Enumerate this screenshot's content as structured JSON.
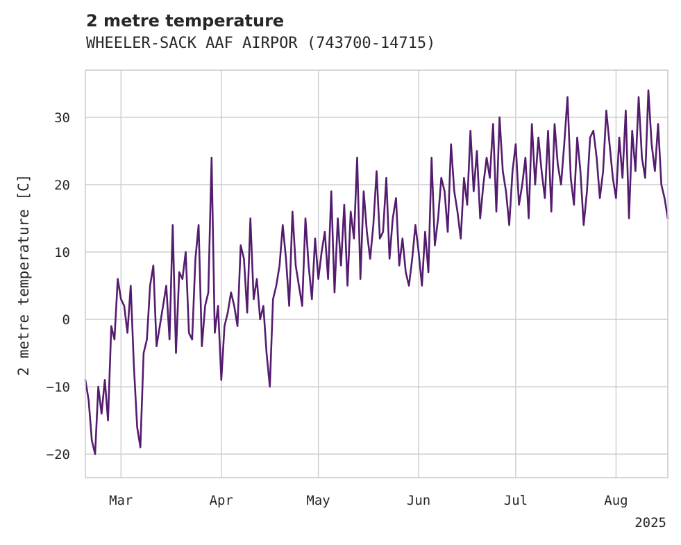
{
  "chart_data": {
    "type": "line",
    "title": "2 metre temperature",
    "subtitle": "WHEELER-SACK AAF AIRPOR (743700-14715)",
    "ylabel": "2 metre temperature [C]",
    "xlabel": "",
    "x_range": [
      "2025-02-18",
      "2025-08-17"
    ],
    "ylim": [
      -23.5,
      37
    ],
    "y_ticks": [
      -20,
      -10,
      0,
      10,
      20,
      30
    ],
    "y_tick_labels": [
      "−20",
      "−10",
      "0",
      "10",
      "20",
      "30"
    ],
    "x_ticks": [
      "2025-03-01",
      "2025-04-01",
      "2025-05-01",
      "2025-06-01",
      "2025-07-01",
      "2025-08-01"
    ],
    "x_tick_labels": [
      "Mar",
      "Apr",
      "May",
      "Jun",
      "Jul",
      "Aug"
    ],
    "x_year_label": "2025",
    "grid": true,
    "series_color": "#541C6E",
    "series": [
      {
        "name": "",
        "x": [
          "2025-02-18",
          "2025-02-19",
          "2025-02-20",
          "2025-02-21",
          "2025-02-22",
          "2025-02-23",
          "2025-02-24",
          "2025-02-25",
          "2025-02-26",
          "2025-02-27",
          "2025-02-28",
          "2025-03-01",
          "2025-03-02",
          "2025-03-03",
          "2025-03-04",
          "2025-03-05",
          "2025-03-06",
          "2025-03-07",
          "2025-03-08",
          "2025-03-09",
          "2025-03-10",
          "2025-03-11",
          "2025-03-12",
          "2025-03-13",
          "2025-03-14",
          "2025-03-15",
          "2025-03-16",
          "2025-03-17",
          "2025-03-18",
          "2025-03-19",
          "2025-03-20",
          "2025-03-21",
          "2025-03-22",
          "2025-03-23",
          "2025-03-24",
          "2025-03-25",
          "2025-03-26",
          "2025-03-27",
          "2025-03-28",
          "2025-03-29",
          "2025-03-30",
          "2025-03-31",
          "2025-04-01",
          "2025-04-02",
          "2025-04-03",
          "2025-04-04",
          "2025-04-05",
          "2025-04-06",
          "2025-04-07",
          "2025-04-08",
          "2025-04-09",
          "2025-04-10",
          "2025-04-11",
          "2025-04-12",
          "2025-04-13",
          "2025-04-14",
          "2025-04-15",
          "2025-04-16",
          "2025-04-17",
          "2025-04-18",
          "2025-04-19",
          "2025-04-20",
          "2025-04-21",
          "2025-04-22",
          "2025-04-23",
          "2025-04-24",
          "2025-04-25",
          "2025-04-26",
          "2025-04-27",
          "2025-04-28",
          "2025-04-29",
          "2025-04-30",
          "2025-05-01",
          "2025-05-02",
          "2025-05-03",
          "2025-05-04",
          "2025-05-05",
          "2025-05-06",
          "2025-05-07",
          "2025-05-08",
          "2025-05-09",
          "2025-05-10",
          "2025-05-11",
          "2025-05-12",
          "2025-05-13",
          "2025-05-14",
          "2025-05-15",
          "2025-05-16",
          "2025-05-17",
          "2025-05-18",
          "2025-05-19",
          "2025-05-20",
          "2025-05-21",
          "2025-05-22",
          "2025-05-23",
          "2025-05-24",
          "2025-05-25",
          "2025-05-26",
          "2025-05-27",
          "2025-05-28",
          "2025-05-29",
          "2025-05-30",
          "2025-05-31",
          "2025-06-01",
          "2025-06-02",
          "2025-06-03",
          "2025-06-04",
          "2025-06-05",
          "2025-06-06",
          "2025-06-07",
          "2025-06-08",
          "2025-06-09",
          "2025-06-10",
          "2025-06-11",
          "2025-06-12",
          "2025-06-13",
          "2025-06-14",
          "2025-06-15",
          "2025-06-16",
          "2025-06-17",
          "2025-06-18",
          "2025-06-19",
          "2025-06-20",
          "2025-06-21",
          "2025-06-22",
          "2025-06-23",
          "2025-06-24",
          "2025-06-25",
          "2025-06-26",
          "2025-06-27",
          "2025-06-28",
          "2025-06-29",
          "2025-06-30",
          "2025-07-01",
          "2025-07-02",
          "2025-07-03",
          "2025-07-04",
          "2025-07-05",
          "2025-07-06",
          "2025-07-07",
          "2025-07-08",
          "2025-07-09",
          "2025-07-10",
          "2025-07-11",
          "2025-07-12",
          "2025-07-13",
          "2025-07-14",
          "2025-07-15",
          "2025-07-16",
          "2025-07-17",
          "2025-07-18",
          "2025-07-19",
          "2025-07-20",
          "2025-07-21",
          "2025-07-22",
          "2025-07-23",
          "2025-07-24",
          "2025-07-25",
          "2025-07-26",
          "2025-07-27",
          "2025-07-28",
          "2025-07-29",
          "2025-07-30",
          "2025-07-31",
          "2025-08-01",
          "2025-08-02",
          "2025-08-03",
          "2025-08-04",
          "2025-08-05",
          "2025-08-06",
          "2025-08-07",
          "2025-08-08",
          "2025-08-09",
          "2025-08-10",
          "2025-08-11",
          "2025-08-12",
          "2025-08-13",
          "2025-08-14",
          "2025-08-15",
          "2025-08-16",
          "2025-08-17"
        ],
        "y": [
          -9,
          -12,
          -18,
          -20,
          -10,
          -14,
          -9,
          -15,
          -1,
          -3,
          6,
          3,
          2,
          -2,
          5,
          -7,
          -16,
          -19,
          -5,
          -3,
          5,
          8,
          -4,
          -1,
          2,
          5,
          -3,
          14,
          -5,
          7,
          6,
          10,
          -2,
          -3,
          9,
          14,
          -4,
          2,
          4,
          24,
          -2,
          2,
          -9,
          -1,
          1,
          4,
          2,
          -1,
          11,
          9,
          1,
          15,
          3,
          6,
          0,
          2,
          -5,
          -10,
          3,
          5,
          8,
          14,
          9,
          2,
          16,
          8,
          5,
          2,
          15,
          8,
          3,
          12,
          6,
          10,
          13,
          6,
          19,
          4,
          15,
          8,
          17,
          5,
          16,
          12,
          24,
          6,
          19,
          13,
          9,
          14,
          22,
          12,
          13,
          21,
          9,
          15,
          18,
          8,
          12,
          7,
          5,
          9,
          14,
          10,
          5,
          13,
          7,
          24,
          11,
          15,
          21,
          19,
          13,
          26,
          19,
          16,
          12,
          21,
          17,
          28,
          19,
          25,
          15,
          20,
          24,
          21,
          29,
          16,
          30,
          22,
          19,
          14,
          22,
          26,
          17,
          20,
          24,
          15,
          29,
          20,
          27,
          22,
          18,
          28,
          16,
          29,
          23,
          20,
          26,
          33,
          21,
          17,
          27,
          22,
          14,
          19,
          27,
          28,
          24,
          18,
          22,
          31,
          26,
          21,
          18,
          27,
          21,
          31,
          15,
          28,
          22,
          33,
          24,
          21,
          34,
          26,
          22,
          29,
          20,
          18,
          15
        ]
      }
    ]
  }
}
